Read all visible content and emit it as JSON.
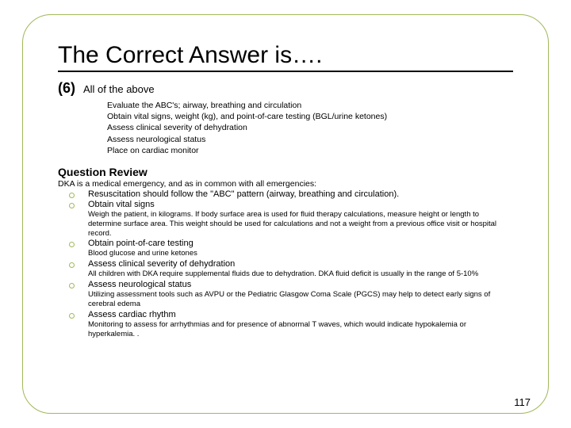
{
  "colors": {
    "accent": "#a1b858",
    "text": "#000000",
    "background": "#ffffff"
  },
  "title": "The Correct Answer is….",
  "answer": {
    "number": "(6)",
    "label": "All of the above",
    "items": [
      "Evaluate the ABC's; airway, breathing and circulation",
      "Obtain vital signs, weight (kg), and point-of-care testing (BGL/urine ketones)",
      "Assess clinical severity of dehydration",
      "Assess neurological status",
      "Place on cardiac monitor"
    ]
  },
  "review": {
    "heading": "Question Review",
    "intro": "DKA is a medical emergency, and as in common with all emergencies:",
    "bullets": [
      {
        "label": "Resuscitation should follow the \"ABC\" pattern (airway, breathing and circulation).",
        "sub": ""
      },
      {
        "label": "Obtain vital signs",
        "sub": "Weigh the patient, in kilograms. If body surface area is used for fluid therapy calculations, measure height or length to determine surface area. This weight should be used for calculations and not a weight from a previous office visit or hospital record."
      },
      {
        "label": "Obtain point-of-care testing",
        "sub": "Blood glucose and urine ketones"
      },
      {
        "label": "Assess clinical severity of dehydration",
        "sub": "All children with DKA require supplemental fluids due to dehydration. DKA fluid deficit is usually in the range of 5-10%"
      },
      {
        "label": "Assess neurological status",
        "sub": "Utilizing assessment tools such as AVPU or the Pediatric Glasgow Coma Scale (PGCS) may help to detect early signs of cerebral edema"
      },
      {
        "label": "Assess cardiac rhythm",
        "sub": "Monitoring to assess for arrhythmias and for presence of abnormal T waves, which would indicate hypokalemia or hyperkalemia. ."
      }
    ]
  },
  "page_number": "117"
}
